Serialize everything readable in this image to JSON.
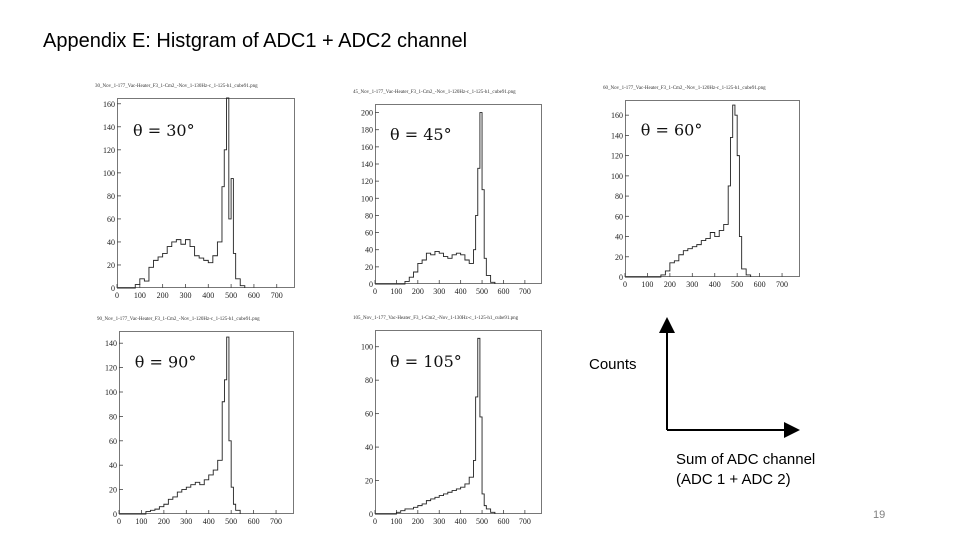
{
  "slide": {
    "title": "Appendix E: Histgram of ADC1 + ADC2 channel",
    "axes_legend": {
      "y_label": "Counts",
      "x_label_line1": "Sum of ADC channel",
      "x_label_line2": "(ADC 1 + ADC 2)"
    },
    "page_number": "19"
  },
  "chart_data": [
    {
      "type": "histogram",
      "header": "30_Nov_1-177_Vac-Heater_F3_1-Cm2_-Nov_1-130Hz-c_1-125-h1_cube91.png",
      "title": "θ = 30°",
      "xlim": [
        0,
        780
      ],
      "ylim": [
        0,
        165
      ],
      "xticks": [
        0,
        100,
        200,
        300,
        400,
        500,
        600,
        700
      ],
      "yticks": [
        0,
        20,
        40,
        60,
        80,
        100,
        120,
        140,
        160
      ],
      "values": [
        [
          0,
          0
        ],
        [
          60,
          0
        ],
        [
          80,
          3
        ],
        [
          100,
          8
        ],
        [
          120,
          6
        ],
        [
          140,
          18
        ],
        [
          160,
          24
        ],
        [
          180,
          27
        ],
        [
          200,
          30
        ],
        [
          220,
          36
        ],
        [
          240,
          40
        ],
        [
          260,
          42
        ],
        [
          280,
          38
        ],
        [
          300,
          42
        ],
        [
          320,
          36
        ],
        [
          340,
          28
        ],
        [
          360,
          26
        ],
        [
          380,
          24
        ],
        [
          400,
          22
        ],
        [
          420,
          28
        ],
        [
          440,
          40
        ],
        [
          460,
          88
        ],
        [
          470,
          120
        ],
        [
          480,
          165
        ],
        [
          490,
          60
        ],
        [
          500,
          95
        ],
        [
          510,
          30
        ],
        [
          520,
          8
        ],
        [
          540,
          2
        ],
        [
          560,
          0
        ]
      ]
    },
    {
      "type": "histogram",
      "header": "45_Nov_1-177_Vac-Heater_F3_1-Cm2_-Nov_1-120Hz-c_1-125-h1_cube91.png",
      "title": "θ = 45°",
      "xlim": [
        0,
        780
      ],
      "ylim": [
        0,
        210
      ],
      "xticks": [
        0,
        100,
        200,
        300,
        400,
        500,
        600,
        700
      ],
      "yticks": [
        0,
        20,
        40,
        60,
        80,
        100,
        120,
        140,
        160,
        180,
        200
      ],
      "values": [
        [
          0,
          0
        ],
        [
          120,
          0
        ],
        [
          140,
          3
        ],
        [
          160,
          8
        ],
        [
          180,
          14
        ],
        [
          200,
          24
        ],
        [
          220,
          28
        ],
        [
          240,
          36
        ],
        [
          260,
          34
        ],
        [
          280,
          38
        ],
        [
          300,
          36
        ],
        [
          320,
          32
        ],
        [
          340,
          30
        ],
        [
          360,
          34
        ],
        [
          380,
          36
        ],
        [
          400,
          34
        ],
        [
          420,
          28
        ],
        [
          440,
          24
        ],
        [
          460,
          40
        ],
        [
          470,
          80
        ],
        [
          480,
          135
        ],
        [
          490,
          200
        ],
        [
          500,
          110
        ],
        [
          510,
          30
        ],
        [
          520,
          10
        ],
        [
          540,
          2
        ],
        [
          560,
          0
        ]
      ]
    },
    {
      "type": "histogram",
      "header": "60_Nov_1-177_Vac-Heater_F3_1-Cm2_-Nov_1-120Hz-c_1-125-h1_cube91.png",
      "title": "θ = 60°",
      "xlim": [
        0,
        780
      ],
      "ylim": [
        0,
        175
      ],
      "xticks": [
        0,
        100,
        200,
        300,
        400,
        500,
        600,
        700
      ],
      "yticks": [
        0,
        20,
        40,
        60,
        80,
        100,
        120,
        140,
        160
      ],
      "values": [
        [
          0,
          0
        ],
        [
          140,
          0
        ],
        [
          160,
          2
        ],
        [
          180,
          6
        ],
        [
          200,
          14
        ],
        [
          220,
          16
        ],
        [
          240,
          22
        ],
        [
          260,
          26
        ],
        [
          280,
          28
        ],
        [
          300,
          30
        ],
        [
          320,
          32
        ],
        [
          340,
          36
        ],
        [
          360,
          38
        ],
        [
          380,
          44
        ],
        [
          400,
          40
        ],
        [
          420,
          46
        ],
        [
          440,
          52
        ],
        [
          460,
          90
        ],
        [
          470,
          138
        ],
        [
          480,
          170
        ],
        [
          490,
          160
        ],
        [
          500,
          120
        ],
        [
          510,
          40
        ],
        [
          520,
          8
        ],
        [
          540,
          2
        ],
        [
          560,
          0
        ]
      ]
    },
    {
      "type": "histogram",
      "header": "90_Nov_1-177_Vac-Heater_F3_1-Cm2_-Nov_1-120Hz-c_1-125-h1_cube91.png",
      "title": "θ = 90°",
      "xlim": [
        0,
        780
      ],
      "ylim": [
        0,
        150
      ],
      "xticks": [
        0,
        100,
        200,
        300,
        400,
        500,
        600,
        700
      ],
      "yticks": [
        0,
        20,
        40,
        60,
        80,
        100,
        120,
        140
      ],
      "values": [
        [
          0,
          0
        ],
        [
          100,
          0
        ],
        [
          120,
          2
        ],
        [
          140,
          3
        ],
        [
          160,
          4
        ],
        [
          180,
          6
        ],
        [
          200,
          8
        ],
        [
          220,
          12
        ],
        [
          240,
          14
        ],
        [
          260,
          18
        ],
        [
          280,
          20
        ],
        [
          300,
          22
        ],
        [
          320,
          24
        ],
        [
          340,
          26
        ],
        [
          360,
          24
        ],
        [
          380,
          28
        ],
        [
          400,
          32
        ],
        [
          420,
          36
        ],
        [
          440,
          44
        ],
        [
          460,
          92
        ],
        [
          470,
          110
        ],
        [
          480,
          145
        ],
        [
          490,
          60
        ],
        [
          500,
          22
        ],
        [
          510,
          8
        ],
        [
          520,
          3
        ],
        [
          540,
          0
        ]
      ]
    },
    {
      "type": "histogram",
      "header": "105_Nov_1-177_Vac-Heater_F3_1-Cm2_-Nov_1-130Hz-c_1-125-h1_cube91.png",
      "title": "θ = 105°",
      "xlim": [
        0,
        780
      ],
      "ylim": [
        0,
        110
      ],
      "xticks": [
        0,
        100,
        200,
        300,
        400,
        500,
        600,
        700
      ],
      "yticks": [
        0,
        20,
        40,
        60,
        80,
        100
      ],
      "values": [
        [
          0,
          0
        ],
        [
          80,
          0
        ],
        [
          100,
          1
        ],
        [
          120,
          2
        ],
        [
          140,
          3
        ],
        [
          160,
          3
        ],
        [
          180,
          4
        ],
        [
          200,
          5
        ],
        [
          220,
          6
        ],
        [
          240,
          8
        ],
        [
          260,
          9
        ],
        [
          280,
          10
        ],
        [
          300,
          11
        ],
        [
          320,
          12
        ],
        [
          340,
          13
        ],
        [
          360,
          14
        ],
        [
          380,
          15
        ],
        [
          400,
          16
        ],
        [
          420,
          18
        ],
        [
          440,
          22
        ],
        [
          460,
          32
        ],
        [
          470,
          70
        ],
        [
          480,
          105
        ],
        [
          490,
          58
        ],
        [
          500,
          12
        ],
        [
          510,
          5
        ],
        [
          520,
          3
        ],
        [
          540,
          1
        ],
        [
          560,
          0
        ]
      ]
    }
  ]
}
